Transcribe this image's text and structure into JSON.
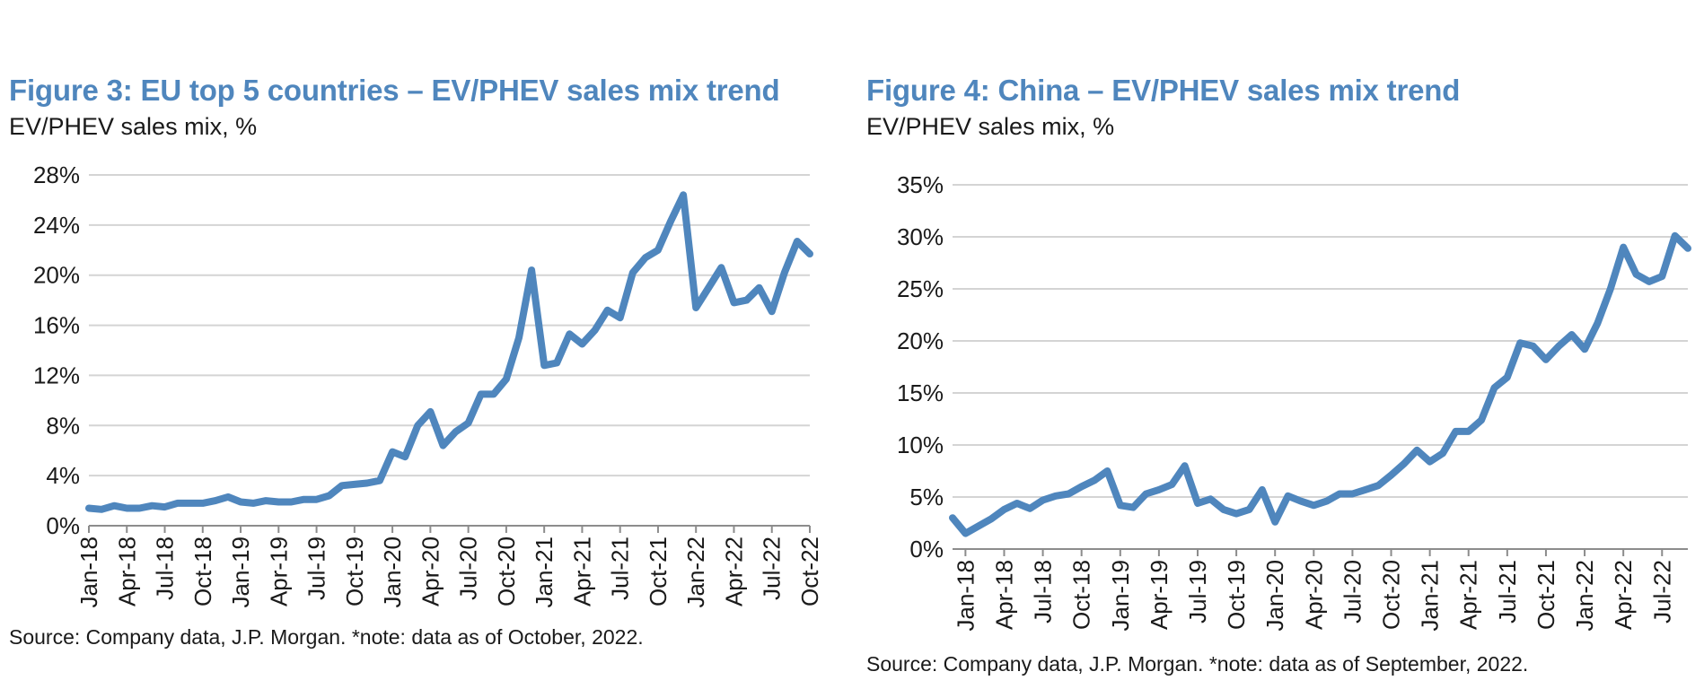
{
  "colors": {
    "title": "#4f86bd",
    "series": "#4f86bd",
    "grid": "#d4d4d4"
  },
  "figures": [
    {
      "title": "Figure 3: EU top 5 countries – EV/PHEV sales mix trend",
      "subtitle": "EV/PHEV sales mix, %",
      "source": "Source: Company data, J.P. Morgan. *note: data as of October, 2022."
    },
    {
      "title": "Figure 4: China – EV/PHEV sales mix trend",
      "subtitle": "EV/PHEV sales mix, %",
      "source": "Source: Company data, J.P. Morgan. *note: data as of September, 2022."
    }
  ],
  "chart_data": [
    {
      "type": "line",
      "title": "Figure 3: EU top 5 countries – EV/PHEV sales mix trend",
      "ylabel": "EV/PHEV sales mix, %",
      "xlabel": "",
      "ylim": [
        0,
        28
      ],
      "yticks": [
        "0%",
        "4%",
        "8%",
        "12%",
        "16%",
        "20%",
        "24%",
        "28%"
      ],
      "xticks": [
        "Jan-18",
        "Apr-18",
        "Jul-18",
        "Oct-18",
        "Jan-19",
        "Apr-19",
        "Jul-19",
        "Oct-19",
        "Jan-20",
        "Apr-20",
        "Jul-20",
        "Oct-20",
        "Jan-21",
        "Apr-21",
        "Jul-21",
        "Oct-21",
        "Jan-22",
        "Apr-22",
        "Jul-22",
        "Oct-22"
      ],
      "grid": true,
      "x": [
        "Jan-18",
        "Feb-18",
        "Mar-18",
        "Apr-18",
        "May-18",
        "Jun-18",
        "Jul-18",
        "Aug-18",
        "Sep-18",
        "Oct-18",
        "Nov-18",
        "Dec-18",
        "Jan-19",
        "Feb-19",
        "Mar-19",
        "Apr-19",
        "May-19",
        "Jun-19",
        "Jul-19",
        "Aug-19",
        "Sep-19",
        "Oct-19",
        "Nov-19",
        "Dec-19",
        "Jan-20",
        "Feb-20",
        "Mar-20",
        "Apr-20",
        "May-20",
        "Jun-20",
        "Jul-20",
        "Aug-20",
        "Sep-20",
        "Oct-20",
        "Nov-20",
        "Dec-20",
        "Jan-21",
        "Feb-21",
        "Mar-21",
        "Apr-21",
        "May-21",
        "Jun-21",
        "Jul-21",
        "Aug-21",
        "Sep-21",
        "Oct-21",
        "Nov-21",
        "Dec-21",
        "Jan-22",
        "Feb-22",
        "Mar-22",
        "Apr-22",
        "May-22",
        "Jun-22",
        "Jul-22",
        "Aug-22",
        "Sep-22",
        "Oct-22"
      ],
      "series": [
        {
          "values": [
            1.4,
            1.3,
            1.6,
            1.4,
            1.4,
            1.6,
            1.5,
            1.8,
            1.8,
            1.8,
            2.0,
            2.3,
            1.9,
            1.8,
            2.0,
            1.9,
            1.9,
            2.1,
            2.1,
            2.4,
            3.2,
            3.3,
            3.4,
            3.6,
            5.9,
            5.5,
            8.0,
            9.1,
            6.4,
            7.5,
            8.2,
            10.5,
            10.5,
            11.7,
            15.0,
            20.4,
            12.8,
            13.0,
            15.3,
            14.5,
            15.6,
            17.2,
            16.6,
            20.2,
            21.4,
            22.0,
            24.3,
            26.4,
            17.4,
            19.0,
            20.6,
            17.8,
            18.0,
            19.0,
            17.1,
            20.2,
            22.7,
            21.7
          ]
        }
      ]
    },
    {
      "type": "line",
      "title": "Figure 4: China – EV/PHEV sales mix trend",
      "ylabel": "EV/PHEV sales mix, %",
      "xlabel": "",
      "ylim": [
        0,
        35
      ],
      "yticks": [
        "0%",
        "5%",
        "10%",
        "15%",
        "20%",
        "25%",
        "30%",
        "35%"
      ],
      "xticks": [
        "Jan-18",
        "Apr-18",
        "Jul-18",
        "Oct-18",
        "Jan-19",
        "Apr-19",
        "Jul-19",
        "Oct-19",
        "Jan-20",
        "Apr-20",
        "Jul-20",
        "Oct-20",
        "Jan-21",
        "Apr-21",
        "Jul-21",
        "Oct-21",
        "Jan-22",
        "Apr-22",
        "Jul-22"
      ],
      "grid": true,
      "x": [
        "Dec-17",
        "Jan-18",
        "Feb-18",
        "Mar-18",
        "Apr-18",
        "May-18",
        "Jun-18",
        "Jul-18",
        "Aug-18",
        "Sep-18",
        "Oct-18",
        "Nov-18",
        "Dec-18",
        "Jan-19",
        "Feb-19",
        "Mar-19",
        "Apr-19",
        "May-19",
        "Jun-19",
        "Jul-19",
        "Aug-19",
        "Sep-19",
        "Oct-19",
        "Nov-19",
        "Dec-19",
        "Jan-20",
        "Feb-20",
        "Mar-20",
        "Apr-20",
        "May-20",
        "Jun-20",
        "Jul-20",
        "Aug-20",
        "Sep-20",
        "Oct-20",
        "Nov-20",
        "Dec-20",
        "Jan-21",
        "Feb-21",
        "Mar-21",
        "Apr-21",
        "May-21",
        "Jun-21",
        "Jul-21",
        "Aug-21",
        "Sep-21",
        "Oct-21",
        "Nov-21",
        "Dec-21",
        "Jan-22",
        "Feb-22",
        "Mar-22",
        "Apr-22",
        "May-22",
        "Jun-22",
        "Jul-22",
        "Aug-22",
        "Sep-22"
      ],
      "series": [
        {
          "values": [
            3.0,
            1.5,
            2.2,
            2.9,
            3.8,
            4.4,
            3.9,
            4.7,
            5.1,
            5.3,
            6.0,
            6.6,
            7.5,
            4.2,
            4.0,
            5.3,
            5.7,
            6.2,
            8.0,
            4.4,
            4.8,
            3.8,
            3.4,
            3.8,
            5.7,
            2.6,
            5.1,
            4.6,
            4.2,
            4.6,
            5.3,
            5.3,
            5.7,
            6.1,
            7.1,
            8.2,
            9.5,
            8.4,
            9.2,
            11.3,
            11.3,
            12.4,
            15.5,
            16.5,
            19.8,
            19.5,
            18.2,
            19.5,
            20.6,
            19.2,
            21.7,
            25.0,
            29.0,
            26.4,
            25.7,
            26.2,
            30.1,
            28.9
          ]
        }
      ]
    }
  ]
}
